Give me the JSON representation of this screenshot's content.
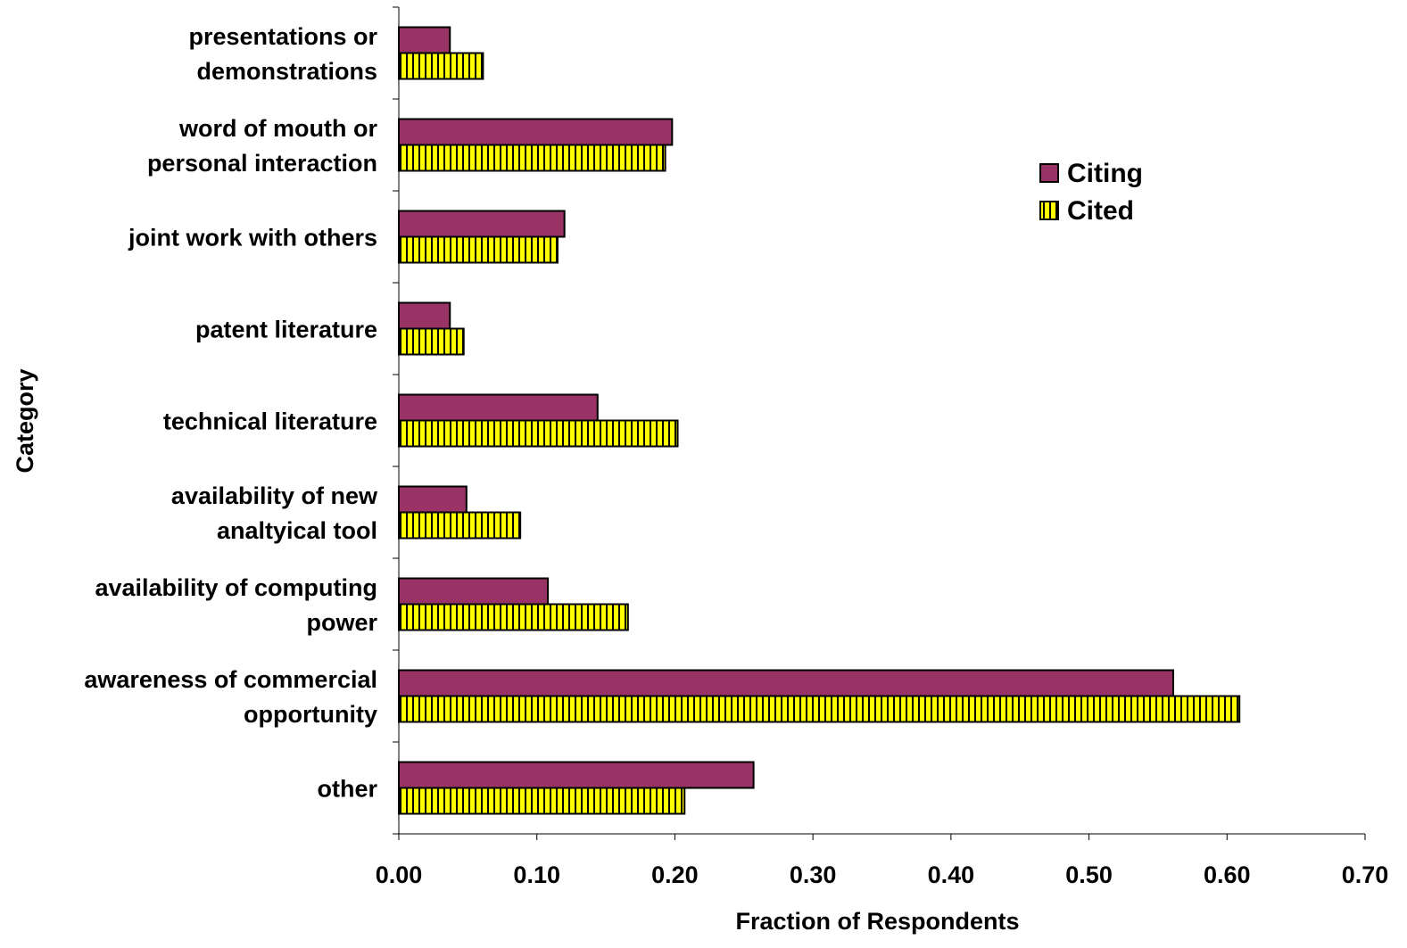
{
  "chart_data": {
    "type": "bar",
    "orientation": "horizontal",
    "title": "",
    "xlabel": "Fraction of Respondents",
    "ylabel": "Category",
    "xlim": [
      0,
      0.7
    ],
    "x_ticks": [
      "0.00",
      "0.10",
      "0.20",
      "0.30",
      "0.40",
      "0.50",
      "0.60",
      "0.70"
    ],
    "grid": false,
    "legend_position": "top-right",
    "categories": [
      [
        "presentations or",
        "demonstrations"
      ],
      [
        "word of mouth or",
        "personal interaction"
      ],
      [
        "joint work with others"
      ],
      [
        "patent literature"
      ],
      [
        "technical literature"
      ],
      [
        "availability of new",
        "analtyical tool"
      ],
      [
        "availability of computing",
        "power"
      ],
      [
        "awareness of commercial",
        "opportunity"
      ],
      [
        "other"
      ]
    ],
    "series": [
      {
        "name": "Citing",
        "color": "#993366",
        "pattern": "solid",
        "values": [
          0.037,
          0.198,
          0.12,
          0.037,
          0.144,
          0.049,
          0.108,
          0.561,
          0.257
        ]
      },
      {
        "name": "Cited",
        "color": "#ffff00",
        "pattern": "vertical-stripes",
        "values": [
          0.061,
          0.193,
          0.115,
          0.047,
          0.202,
          0.088,
          0.166,
          0.609,
          0.207
        ]
      }
    ]
  }
}
